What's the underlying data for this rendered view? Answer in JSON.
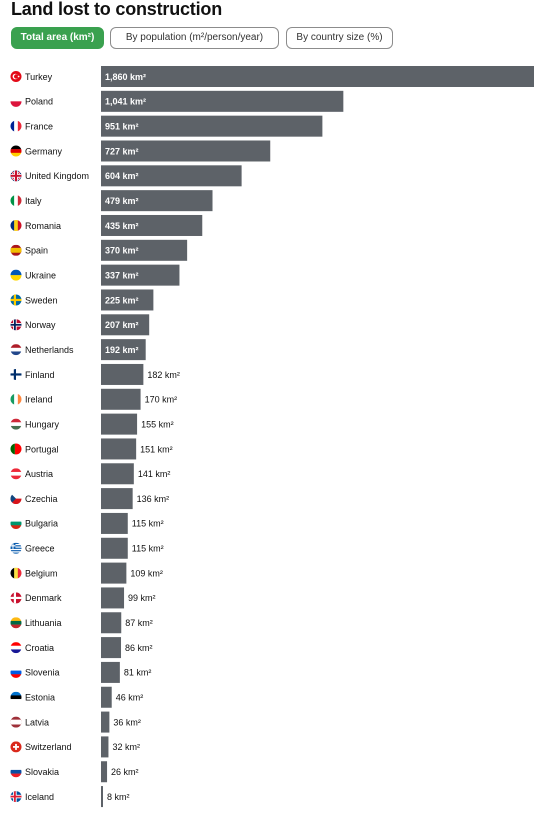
{
  "title": "Land lost to construction",
  "tabs": [
    {
      "label": "Total area (km²)",
      "active": true
    },
    {
      "label": "By population (m²/person/year)",
      "active": false
    },
    {
      "label": "By country size (%)",
      "active": false
    }
  ],
  "colors": {
    "bar": "#5d6268",
    "active_tab": "#3aa14f"
  },
  "chart_data": {
    "type": "bar",
    "orientation": "horizontal",
    "unit": "km²",
    "categories": [
      "Turkey",
      "Poland",
      "France",
      "Germany",
      "United Kingdom",
      "Italy",
      "Romania",
      "Spain",
      "Ukraine",
      "Sweden",
      "Norway",
      "Netherlands",
      "Finland",
      "Ireland",
      "Hungary",
      "Portugal",
      "Austria",
      "Czechia",
      "Bulgaria",
      "Greece",
      "Belgium",
      "Denmark",
      "Lithuania",
      "Croatia",
      "Slovenia",
      "Estonia",
      "Latvia",
      "Switzerland",
      "Slovakia",
      "Iceland"
    ],
    "values": [
      1860,
      1041,
      951,
      727,
      604,
      479,
      435,
      370,
      337,
      225,
      207,
      192,
      182,
      170,
      155,
      151,
      141,
      136,
      115,
      115,
      109,
      99,
      87,
      86,
      81,
      46,
      36,
      32,
      26,
      8
    ],
    "value_labels": [
      "1,860 km²",
      "1,041 km²",
      "951 km²",
      "727 km²",
      "604 km²",
      "479 km²",
      "435 km²",
      "370 km²",
      "337 km²",
      "225 km²",
      "207 km²",
      "192 km²",
      "182 km²",
      "170 km²",
      "155 km²",
      "151 km²",
      "141 km²",
      "136 km²",
      "115 km²",
      "115 km²",
      "109 km²",
      "99 km²",
      "87 km²",
      "86 km²",
      "81 km²",
      "46 km²",
      "36 km²",
      "32 km²",
      "26 km²",
      "8 km²"
    ],
    "flags": [
      {
        "type": "turkey"
      },
      {
        "type": "h",
        "colors": [
          "#ffffff",
          "#dc143c"
        ]
      },
      {
        "type": "v",
        "colors": [
          "#002395",
          "#ffffff",
          "#ed2939"
        ]
      },
      {
        "type": "h",
        "colors": [
          "#000000",
          "#dd0000",
          "#ffce00"
        ]
      },
      {
        "type": "uk"
      },
      {
        "type": "v",
        "colors": [
          "#009246",
          "#ffffff",
          "#ce2b37"
        ]
      },
      {
        "type": "v",
        "colors": [
          "#002b7f",
          "#fcd116",
          "#ce1126"
        ]
      },
      {
        "type": "h3",
        "colors": [
          "#aa151b",
          "#f1bf00",
          "#aa151b"
        ]
      },
      {
        "type": "h",
        "colors": [
          "#0057b7",
          "#ffd700"
        ]
      },
      {
        "type": "nordic",
        "colors": [
          "#006aa7",
          "#fecc00"
        ]
      },
      {
        "type": "nordic2",
        "colors": [
          "#ba0c2f",
          "#ffffff",
          "#00205b"
        ]
      },
      {
        "type": "h",
        "colors": [
          "#ae1c28",
          "#ffffff",
          "#21468b"
        ]
      },
      {
        "type": "nordic",
        "colors": [
          "#ffffff",
          "#002f6c"
        ]
      },
      {
        "type": "v",
        "colors": [
          "#169b62",
          "#ffffff",
          "#ff883e"
        ]
      },
      {
        "type": "h",
        "colors": [
          "#ce2939",
          "#ffffff",
          "#477050"
        ]
      },
      {
        "type": "v2",
        "colors": [
          "#006600",
          "#ff0000"
        ]
      },
      {
        "type": "h",
        "colors": [
          "#ed2939",
          "#ffffff",
          "#ed2939"
        ]
      },
      {
        "type": "czech"
      },
      {
        "type": "h",
        "colors": [
          "#ffffff",
          "#00966e",
          "#d62612"
        ]
      },
      {
        "type": "greece"
      },
      {
        "type": "v",
        "colors": [
          "#000000",
          "#fae042",
          "#ed2939"
        ]
      },
      {
        "type": "nordic",
        "colors": [
          "#c8102e",
          "#ffffff"
        ]
      },
      {
        "type": "h",
        "colors": [
          "#fdb913",
          "#006a44",
          "#c1272d"
        ]
      },
      {
        "type": "h",
        "colors": [
          "#ff0000",
          "#ffffff",
          "#171796"
        ]
      },
      {
        "type": "h",
        "colors": [
          "#ffffff",
          "#005ce5",
          "#ff0000"
        ]
      },
      {
        "type": "h",
        "colors": [
          "#0072ce",
          "#000000",
          "#ffffff"
        ]
      },
      {
        "type": "h3",
        "colors": [
          "#9e3039",
          "#ffffff",
          "#9e3039"
        ]
      },
      {
        "type": "swiss"
      },
      {
        "type": "h",
        "colors": [
          "#ffffff",
          "#0b4ea2",
          "#ee1c25"
        ]
      },
      {
        "type": "nordic2",
        "colors": [
          "#02529c",
          "#ffffff",
          "#dc1e35"
        ]
      }
    ]
  }
}
